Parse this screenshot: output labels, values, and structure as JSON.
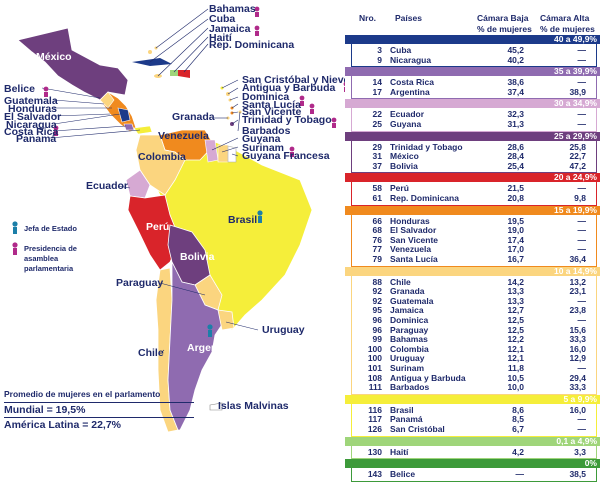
{
  "map_labels": {
    "mexico": "México",
    "bahamas": "Bahamas",
    "cuba": "Cuba",
    "jamaica": "Jamaica",
    "haiti": "Haití",
    "rep_dominicana": "Rep. Dominicana",
    "belice": "Belice",
    "guatemala": "Guatemala",
    "honduras": "Honduras",
    "el_salvador": "El Salvador",
    "nicaragua": "Nicaragua",
    "costa_rica": "Costa Rica",
    "panama": "Panamá",
    "san_cristobal": "San Cristóbal y Nieves",
    "antigua": "Antigua y Barbuda",
    "dominica": "Dominica",
    "santa_lucia": "Santa Lucía",
    "san_vicente": "San Vicente",
    "trinidad": "Trinidad y Tobago",
    "granada": "Granada",
    "barbados": "Barbados",
    "guyana": "Guyana",
    "surinam": "Surinam",
    "guyana_francesa": "Guyana Francesa",
    "venezuela": "Venezuela",
    "colombia": "Colombia",
    "ecuador": "Ecuador",
    "peru": "Perú",
    "brasil": "Brasil",
    "bolivia": "Bolivia",
    "paraguay": "Paraguay",
    "chile": "Chile",
    "argentina": "Argentina",
    "uruguay": "Uruguay",
    "malvinas": "Islas Malvinas"
  },
  "legend": {
    "jefa": "Jefa de Estado",
    "presidencia": "Presidencia de asamblea parlamentaria"
  },
  "averages": {
    "title": "Promedio de mujeres en el parlamento",
    "mundial": "Mundial = 19,5%",
    "america_latina": "América Latina = 22,7%"
  },
  "table": {
    "headers": {
      "nro": "Nro.",
      "paises": "Países",
      "baja": "Cámara Baja",
      "alta": "Cámara Alta",
      "sub": "% de mujeres"
    },
    "sections": [
      {
        "label": "40 a 49,9%",
        "color": "#1c3a8a",
        "rows": [
          {
            "nro": "3",
            "pais": "Cuba",
            "baja": "45,2",
            "alta": "—"
          },
          {
            "nro": "9",
            "pais": "Nicaragua",
            "baja": "40,2",
            "alta": "—"
          }
        ]
      },
      {
        "label": "35 a 39,9%",
        "color": "#8f6bb0",
        "rows": [
          {
            "nro": "14",
            "pais": "Costa Rica",
            "baja": "38,6",
            "alta": "—"
          },
          {
            "nro": "17",
            "pais": "Argentina",
            "baja": "37,4",
            "alta": "38,9"
          }
        ]
      },
      {
        "label": "30 a 34,9%",
        "color": "#d6a9d3",
        "rows": [
          {
            "nro": "22",
            "pais": "Ecuador",
            "baja": "32,3",
            "alta": "—"
          },
          {
            "nro": "25",
            "pais": "Guyana",
            "baja": "31,3",
            "alta": "—"
          }
        ]
      },
      {
        "label": "25 a 29,9%",
        "color": "#6e3f7e",
        "rows": [
          {
            "nro": "29",
            "pais": "Trinidad y Tobago",
            "baja": "28,6",
            "alta": "25,8"
          },
          {
            "nro": "31",
            "pais": "México",
            "baja": "28,4",
            "alta": "22,7"
          },
          {
            "nro": "37",
            "pais": "Bolivia",
            "baja": "25,4",
            "alta": "47,2"
          }
        ]
      },
      {
        "label": "20 a 24,9%",
        "color": "#d9242a",
        "rows": [
          {
            "nro": "58",
            "pais": "Perú",
            "baja": "21,5",
            "alta": "—"
          },
          {
            "nro": "61",
            "pais": "Rep. Dominicana",
            "baja": "20,8",
            "alta": "9,8"
          }
        ]
      },
      {
        "label": "15 a 19,9%",
        "color": "#f08a1e",
        "rows": [
          {
            "nro": "66",
            "pais": "Honduras",
            "baja": "19,5",
            "alta": "—"
          },
          {
            "nro": "68",
            "pais": "El Salvador",
            "baja": "19,0",
            "alta": "—"
          },
          {
            "nro": "76",
            "pais": "San Vicente",
            "baja": "17,4",
            "alta": "—"
          },
          {
            "nro": "77",
            "pais": "Venezuela",
            "baja": "17,0",
            "alta": "—"
          },
          {
            "nro": "79",
            "pais": "Santa Lucía",
            "baja": "16,7",
            "alta": "36,4"
          }
        ]
      },
      {
        "label": "10 a 14,9%",
        "color": "#fbd57f",
        "rows": [
          {
            "nro": "88",
            "pais": "Chile",
            "baja": "14,2",
            "alta": "13,2"
          },
          {
            "nro": "92",
            "pais": "Granada",
            "baja": "13,3",
            "alta": "23,1"
          },
          {
            "nro": "92",
            "pais": "Guatemala",
            "baja": "13,3",
            "alta": "—"
          },
          {
            "nro": "95",
            "pais": "Jamaica",
            "baja": "12,7",
            "alta": "23,8"
          },
          {
            "nro": "96",
            "pais": "Dominica",
            "baja": "12,5",
            "alta": "—"
          },
          {
            "nro": "96",
            "pais": "Paraguay",
            "baja": "12,5",
            "alta": "15,6"
          },
          {
            "nro": "99",
            "pais": "Bahamas",
            "baja": "12,2",
            "alta": "33,3"
          },
          {
            "nro": "100",
            "pais": "Colombia",
            "baja": "12,1",
            "alta": "16,0"
          },
          {
            "nro": "100",
            "pais": "Uruguay",
            "baja": "12,1",
            "alta": "12,9"
          },
          {
            "nro": "101",
            "pais": "Surinam",
            "baja": "11,8",
            "alta": "—"
          },
          {
            "nro": "108",
            "pais": "Antigua y Barbuda",
            "baja": "10,5",
            "alta": "29,4"
          },
          {
            "nro": "111",
            "pais": "Barbados",
            "baja": "10,0",
            "alta": "33,3"
          }
        ]
      },
      {
        "label": "5 a 9,9%",
        "color": "#f5ee3a",
        "rows": [
          {
            "nro": "116",
            "pais": "Brasil",
            "baja": "8,6",
            "alta": "16,0"
          },
          {
            "nro": "117",
            "pais": "Panamá",
            "baja": "8,5",
            "alta": "—"
          },
          {
            "nro": "126",
            "pais": "San Cristóbal",
            "baja": "6,7",
            "alta": "—"
          }
        ]
      },
      {
        "label": "0,1 a 4,9%",
        "color": "#9fd57a",
        "rows": [
          {
            "nro": "130",
            "pais": "Haití",
            "baja": "4,2",
            "alta": "3,3"
          }
        ]
      },
      {
        "label": "0%",
        "color": "#3d9a3a",
        "rows": [
          {
            "nro": "143",
            "pais": "Belice",
            "baja": "—",
            "alta": "38,5"
          }
        ]
      }
    ]
  },
  "colors": {
    "ocean": "#ffffff",
    "text": "#1f2a6b"
  }
}
